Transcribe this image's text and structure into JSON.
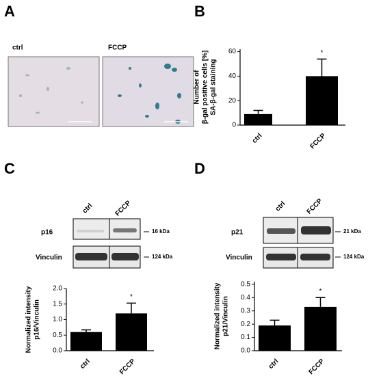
{
  "panels": {
    "a": "A",
    "b": "B",
    "c": "C",
    "d": "D"
  },
  "images": {
    "ctrl": "ctrl",
    "fccp": "FCCP"
  },
  "blot_c": {
    "lanes": [
      "ctrl",
      "FCCP"
    ],
    "rows": [
      "p16",
      "Vinculin"
    ],
    "sizes": [
      "16 kDa",
      "124 kDa"
    ]
  },
  "blot_d": {
    "lanes": [
      "ctrl",
      "FCCP"
    ],
    "rows": [
      "p21",
      "Vinculin"
    ],
    "sizes": [
      "21 kDa",
      "124 kDa"
    ]
  },
  "chart_data": [
    {
      "type": "bar",
      "y_label": [
        "Number of",
        "β-gal positive cells [%]",
        "SA-β-gal staining"
      ],
      "categories": [
        "ctrl",
        "FCCP"
      ],
      "values": [
        9,
        40
      ],
      "errors": [
        3,
        14
      ],
      "color": "#000000",
      "annotations": [
        null,
        "*"
      ],
      "ylim": [
        0,
        62
      ],
      "yticks": [
        0,
        20,
        40,
        60
      ]
    },
    {
      "type": "bar",
      "y_label": [
        "Normalized intensity",
        "p16/Vinculin"
      ],
      "categories": [
        "ctrl",
        "FCCP"
      ],
      "values": [
        0.6,
        1.2
      ],
      "errors": [
        0.07,
        0.33
      ],
      "color": "#000000",
      "annotations": [
        null,
        "*"
      ],
      "ylim": [
        0,
        2.0
      ],
      "yticks": [
        {
          "value": 0,
          "label": "0.0"
        },
        0.5,
        {
          "value": 1,
          "label": "1.0"
        },
        1.5,
        {
          "value": 2,
          "label": "2.0"
        }
      ]
    },
    {
      "type": "bar",
      "y_label": [
        "Normalized intensity",
        "p21/Vinculin"
      ],
      "categories": [
        "ctrl",
        "FCCP"
      ],
      "values": [
        0.19,
        0.33
      ],
      "errors": [
        0.04,
        0.07
      ],
      "color": "#000000",
      "annotations": [
        null,
        "*"
      ],
      "ylim": [
        0,
        0.52
      ],
      "yticks": [
        {
          "value": 0,
          "label": "0.0"
        },
        0.1,
        0.2,
        0.3,
        0.4,
        0.5
      ]
    }
  ]
}
